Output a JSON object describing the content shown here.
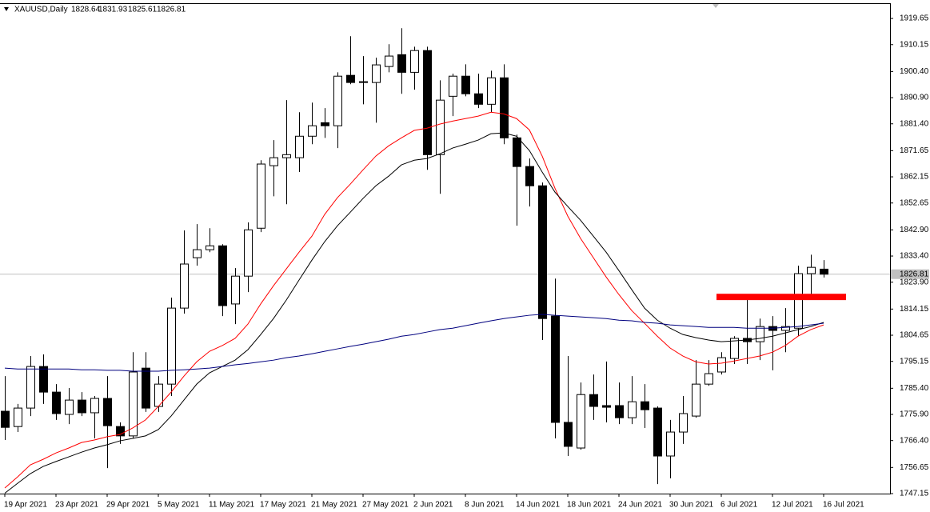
{
  "chart_data": {
    "type": "candlestick",
    "title": "XAUUSD,Daily",
    "categories": [
      "19 Apr 2021",
      null,
      null,
      null,
      "23 Apr 2021",
      null,
      null,
      null,
      "29 Apr 2021",
      null,
      null,
      null,
      "5 May 2021",
      null,
      null,
      null,
      "11 May 2021",
      null,
      null,
      null,
      "17 May 2021",
      null,
      null,
      null,
      "21 May 2021",
      null,
      null,
      null,
      "27 May 2021",
      null,
      null,
      null,
      "2 Jun 2021",
      null,
      null,
      null,
      "8 Jun 2021",
      null,
      null,
      null,
      "14 Jun 2021",
      null,
      null,
      null,
      "18 Jun 2021",
      null,
      null,
      null,
      "24 Jun 2021",
      null,
      null,
      null,
      "30 Jun 2021",
      null,
      null,
      null,
      "6 Jul 2021",
      null,
      null,
      null,
      "12 Jul 2021",
      null,
      null,
      null,
      "16 Jul 2021"
    ],
    "open": [
      1777.05,
      1771.5,
      1778.2,
      1793.3,
      1784.0,
      1775.9,
      1781.1,
      1776.5,
      1781.7,
      1771.5,
      1768.1,
      1792.7,
      1778.8,
      1786.9,
      1814.5,
      1832.8,
      1835.7,
      1837.1,
      1816.0,
      1826.1,
      1843.5,
      1866.2,
      1869.1,
      1869.1,
      1876.9,
      1881.8,
      1880.7,
      1899.0,
      1896.4,
      1896.4,
      1902.2,
      1906.5,
      1900.1,
      1908.0,
      1870.2,
      1891.4,
      1898.7,
      1892.3,
      1888.5,
      1898.1,
      1876.3,
      1865.9,
      1858.9,
      1811.6,
      1773.0,
      1763.7,
      1783.1,
      1779.1,
      1779.1,
      1774.7,
      1780.5,
      1778.2,
      1760.8,
      1769.5,
      1775.3,
      1786.9,
      1791.3,
      1796.2,
      1803.5,
      1802.3,
      1807.8,
      1806.4,
      1807.2,
      1827.0,
      1828.64
    ],
    "high": [
      1789.8,
      1779.7,
      1797.1,
      1797.7,
      1786.9,
      1785.5,
      1784.0,
      1782.6,
      1789.8,
      1773.0,
      1798.5,
      1798.5,
      1789.8,
      1818.3,
      1842.7,
      1845.0,
      1843.5,
      1837.7,
      1829.0,
      1845.6,
      1868.2,
      1875.5,
      1890.0,
      1885.6,
      1889.1,
      1887.1,
      1900.1,
      1913.2,
      1906.0,
      1905.4,
      1910.3,
      1916.1,
      1909.4,
      1909.4,
      1897.2,
      1899.6,
      1903.0,
      1899.6,
      1900.7,
      1903.0,
      1877.5,
      1868.8,
      1860.1,
      1825.2,
      1797.1,
      1787.5,
      1790.4,
      1795.1,
      1787.5,
      1789.8,
      1786.9,
      1778.8,
      1773.9,
      1782.6,
      1795.6,
      1795.6,
      1798.5,
      1804.3,
      1818.3,
      1810.7,
      1811.6,
      1814.5,
      1829.9,
      1833.9,
      1831.93
    ],
    "low": [
      1766.6,
      1769.5,
      1775.3,
      1779.7,
      1773.9,
      1772.4,
      1775.3,
      1767.2,
      1756.4,
      1765.2,
      1767.2,
      1776.8,
      1776.8,
      1782.6,
      1812.5,
      1829.9,
      1834.8,
      1811.6,
      1808.7,
      1820.3,
      1842.1,
      1855.1,
      1852.2,
      1863.9,
      1874.0,
      1876.3,
      1872.6,
      1895.8,
      1888.5,
      1881.8,
      1900.1,
      1892.3,
      1893.8,
      1864.7,
      1856.0,
      1884.2,
      1891.4,
      1887.1,
      1885.6,
      1874.0,
      1844.4,
      1851.4,
      1802.9,
      1767.2,
      1760.8,
      1763.1,
      1773.9,
      1773.0,
      1772.4,
      1772.4,
      1770.95,
      1750.6,
      1752.7,
      1765.2,
      1774.7,
      1786.3,
      1790.4,
      1794.2,
      1794.2,
      1795.6,
      1791.9,
      1798.5,
      1804.3,
      1819.4,
      1825.61
    ],
    "close": [
      1771.2,
      1778.2,
      1793.3,
      1784.0,
      1776.2,
      1781.1,
      1776.5,
      1781.7,
      1771.8,
      1768.1,
      1791.3,
      1778.2,
      1786.9,
      1814.5,
      1830.5,
      1835.7,
      1837.1,
      1815.4,
      1826.1,
      1842.9,
      1866.8,
      1869.1,
      1870.2,
      1876.9,
      1880.7,
      1880.7,
      1898.7,
      1896.4,
      1896.7,
      1902.8,
      1906.0,
      1900.1,
      1908.0,
      1870.2,
      1890.0,
      1898.7,
      1892.3,
      1888.5,
      1898.1,
      1876.3,
      1865.9,
      1858.9,
      1810.7,
      1773.0,
      1764.3,
      1783.1,
      1778.8,
      1778.5,
      1774.7,
      1780.5,
      1777.6,
      1760.8,
      1769.5,
      1776.2,
      1786.9,
      1790.7,
      1796.5,
      1803.5,
      1802.3,
      1807.8,
      1806.4,
      1807.8,
      1827.0,
      1829.3,
      1826.81
    ],
    "up_color": "#ffffff",
    "down_color": "#000000",
    "moving_averages": [
      {
        "color": "#ff0000",
        "values": [
          1749.2,
          1753.2,
          1757.6,
          1759.6,
          1761.9,
          1763.7,
          1765.7,
          1766.6,
          1767.8,
          1768.6,
          1771.0,
          1773.9,
          1778.8,
          1784.0,
          1789.8,
          1795.0,
          1798.8,
          1800.9,
          1803.5,
          1808.7,
          1816.0,
          1822.6,
          1828.7,
          1834.8,
          1840.6,
          1848.5,
          1854.6,
          1859.5,
          1864.7,
          1869.7,
          1873.4,
          1876.3,
          1879.0,
          1879.8,
          1881.3,
          1882.4,
          1883.3,
          1884.2,
          1885.6,
          1885.0,
          1883.3,
          1879.2,
          1869.7,
          1858.0,
          1847.9,
          1839.8,
          1832.8,
          1825.8,
          1819.4,
          1813.6,
          1809.0,
          1804.3,
          1800.0,
          1797.1,
          1795.0,
          1794.2,
          1794.5,
          1795.3,
          1796.2,
          1797.1,
          1798.5,
          1800.9,
          1804.3,
          1806.7,
          1808.4
        ]
      },
      {
        "color": "#000000",
        "values": [
          1747.3,
          1750.9,
          1754.4,
          1757.0,
          1758.8,
          1760.5,
          1762.2,
          1763.7,
          1764.9,
          1766.3,
          1767.2,
          1768.1,
          1770.4,
          1775.3,
          1781.1,
          1786.9,
          1791.0,
          1793.3,
          1795.6,
          1799.4,
          1804.9,
          1810.7,
          1817.4,
          1824.7,
          1831.9,
          1838.6,
          1844.4,
          1849.3,
          1854.3,
          1858.9,
          1862.4,
          1866.5,
          1868.2,
          1868.8,
          1870.5,
          1872.6,
          1874.0,
          1875.5,
          1877.8,
          1878.1,
          1876.9,
          1871.7,
          1863.9,
          1856.6,
          1851.4,
          1846.4,
          1840.6,
          1834.8,
          1828.1,
          1821.2,
          1814.5,
          1810.1,
          1807.2,
          1804.9,
          1803.8,
          1802.9,
          1802.3,
          1802.6,
          1802.9,
          1803.5,
          1804.3,
          1805.5,
          1806.7,
          1807.8,
          1809.3
        ]
      },
      {
        "color": "#00007f",
        "values": [
          1792.7,
          1792.4,
          1792.4,
          1792.4,
          1792.4,
          1792.4,
          1792.1,
          1792.1,
          1791.9,
          1791.9,
          1791.6,
          1791.6,
          1791.6,
          1791.9,
          1792.1,
          1792.4,
          1792.7,
          1793.3,
          1793.9,
          1794.4,
          1795.0,
          1795.6,
          1796.5,
          1797.1,
          1797.9,
          1798.8,
          1799.7,
          1800.6,
          1801.4,
          1802.3,
          1803.2,
          1804.3,
          1804.9,
          1805.8,
          1806.7,
          1807.2,
          1808.1,
          1809.0,
          1809.9,
          1810.7,
          1811.3,
          1811.9,
          1812.2,
          1811.9,
          1811.6,
          1811.3,
          1811.0,
          1810.7,
          1810.1,
          1809.9,
          1809.3,
          1809.0,
          1808.4,
          1808.1,
          1807.8,
          1807.5,
          1807.5,
          1807.5,
          1807.2,
          1807.2,
          1807.2,
          1807.5,
          1807.8,
          1808.4,
          1809.0
        ]
      }
    ],
    "zone": {
      "low": 1817.4,
      "high": 1819.7,
      "color": "#ff0000"
    },
    "ylim": [
      1747.15,
      1924.9
    ],
    "yticks": [
      1919.65,
      1910.15,
      {
        "value": 1900.4,
        "label": "1900.40"
      },
      {
        "value": 1890.9,
        "label": "1890.90"
      },
      {
        "value": 1881.4,
        "label": "1881.40"
      },
      1871.65,
      1862.15,
      1852.65,
      {
        "value": 1842.9,
        "label": "1842.90"
      },
      {
        "value": 1833.4,
        "label": "1833.40"
      },
      {
        "value": 1823.9,
        "label": "1823.90"
      },
      1814.15,
      1804.65,
      1795.15,
      {
        "value": 1785.4,
        "label": "1785.40"
      },
      {
        "value": 1775.9,
        "label": "1775.90"
      },
      {
        "value": 1766.4,
        "label": "1766.40"
      },
      1756.65,
      1747.15
    ]
  }
}
